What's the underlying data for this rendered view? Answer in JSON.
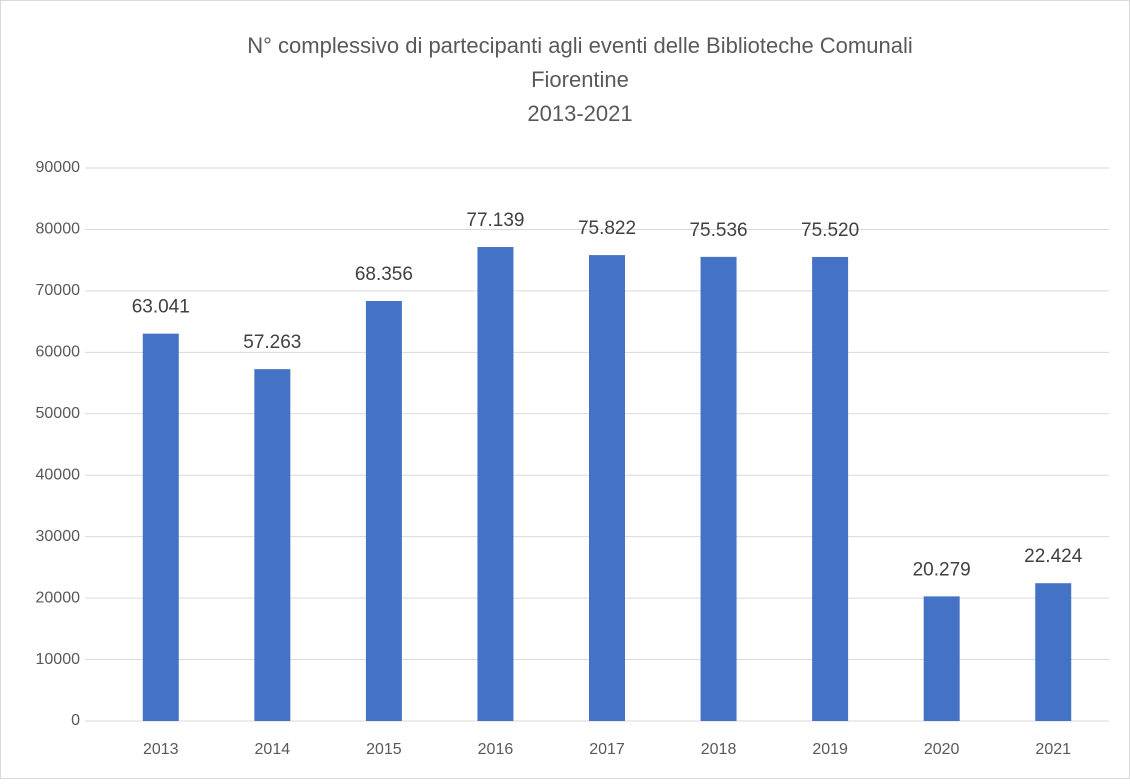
{
  "chart_data": {
    "type": "bar",
    "title": [
      "N° complessivo di partecipanti agli eventi delle Biblioteche Comunali",
      "Fiorentine",
      "2013-2021"
    ],
    "categories": [
      "2013",
      "2014",
      "2015",
      "2016",
      "2017",
      "2018",
      "2019",
      "2020",
      "2021"
    ],
    "values": [
      63041,
      57263,
      68356,
      77139,
      75822,
      75536,
      75520,
      20279,
      22424
    ],
    "value_labels": [
      "63.041",
      "57.263",
      "68.356",
      "77.139",
      "75.822",
      "75.536",
      "75.520",
      "20.279",
      "22.424"
    ],
    "color": "#4472c4",
    "ylim": [
      0,
      90000
    ],
    "yticks": [
      0,
      10000,
      20000,
      30000,
      40000,
      50000,
      60000,
      70000,
      80000,
      90000
    ],
    "grid": true
  }
}
